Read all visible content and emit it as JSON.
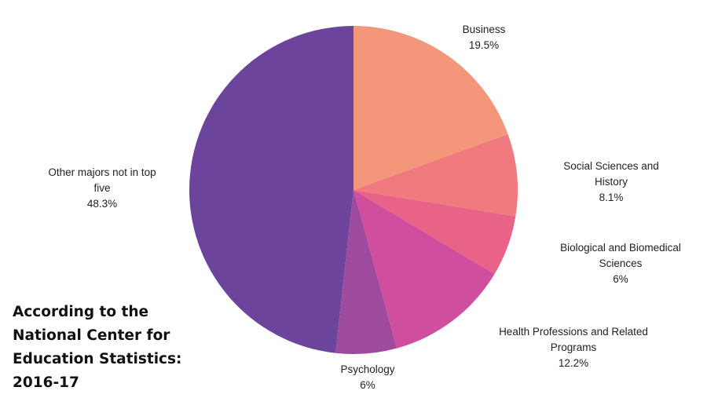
{
  "caption": {
    "lines": [
      "According to the",
      "National Center for",
      "Education Statistics:",
      "2016-17"
    ]
  },
  "chart_data": {
    "type": "pie",
    "slices": [
      {
        "label_lines": [
          "Business"
        ],
        "value_label": "19.5%",
        "value": 19.5,
        "color": "#f4967a"
      },
      {
        "label_lines": [
          "Social Sciences and",
          "History"
        ],
        "value_label": "8.1%",
        "value": 8.1,
        "color": "#f07a7e"
      },
      {
        "label_lines": [
          "Biological and Biomedical",
          "Sciences"
        ],
        "value_label": "6%",
        "value": 6,
        "color": "#e96388"
      },
      {
        "label_lines": [
          "Health Professions and Related",
          "Programs"
        ],
        "value_label": "12.2%",
        "value": 12.2,
        "color": "#cf4e9d"
      },
      {
        "label_lines": [
          "Psychology"
        ],
        "value_label": "6%",
        "value": 6,
        "color": "#9d4a9f"
      },
      {
        "label_lines": [
          "Other majors not in top",
          "five"
        ],
        "value_label": "48.3%",
        "value": 48.3,
        "color": "#6c449c"
      }
    ]
  }
}
